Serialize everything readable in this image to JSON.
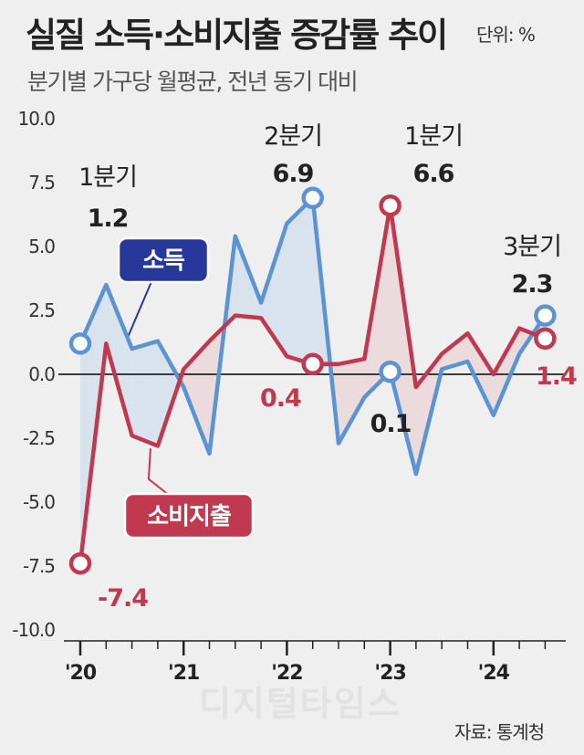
{
  "header": {
    "title": "실질 소득·소비지출 증감률 추이",
    "unit": "단위: %",
    "subtitle": "분기별 가구당 월평균, 전년 동기 대비"
  },
  "footer": {
    "source": "자료: 통계청",
    "watermark": "디지털타임스"
  },
  "colors": {
    "income": "#5b93d3",
    "income_fill": "#d9e3ee",
    "spending": "#c0394f",
    "spending_fill": "#ecdbdd",
    "income_badge": "#27389a",
    "spending_badge": "#c0394f",
    "background": "#efefef"
  },
  "chart_data": {
    "type": "line",
    "title": "실질 소득·소비지출 증감률 추이",
    "subtitle": "분기별 가구당 월평균, 전년 동기 대비",
    "unit": "%",
    "xlabel": "",
    "ylabel": "",
    "ylim": [
      -10,
      10
    ],
    "yticks": [
      10.0,
      7.5,
      5.0,
      2.5,
      0.0,
      -2.5,
      -5.0,
      -7.5,
      -10.0
    ],
    "ytick_labels": [
      "10.0",
      "7.5",
      "5.0",
      "2.5",
      "0.0",
      "-2.5",
      "-5.0",
      "-7.5",
      "-10.0"
    ],
    "year_labels": [
      "'20",
      "'21",
      "'22",
      "'23",
      "'24"
    ],
    "x": [
      "'20 1Q",
      "'20 2Q",
      "'20 3Q",
      "'20 4Q",
      "'21 1Q",
      "'21 2Q",
      "'21 3Q",
      "'21 4Q",
      "'22 1Q",
      "'22 2Q",
      "'22 3Q",
      "'22 4Q",
      "'23 1Q",
      "'23 2Q",
      "'23 3Q",
      "'23 4Q",
      "'24 1Q",
      "'24 2Q",
      "'24 3Q"
    ],
    "grid": false,
    "series": [
      {
        "name": "소득",
        "values": [
          1.2,
          3.5,
          1.0,
          1.3,
          -0.5,
          -3.1,
          5.4,
          2.8,
          5.9,
          6.9,
          -2.7,
          -0.9,
          0.1,
          -3.9,
          0.2,
          0.5,
          -1.6,
          0.8,
          2.3
        ]
      },
      {
        "name": "소비지출",
        "values": [
          -7.4,
          1.2,
          -2.4,
          -2.8,
          0.2,
          1.3,
          2.3,
          2.2,
          0.7,
          0.4,
          0.4,
          0.6,
          6.6,
          -0.5,
          0.8,
          1.6,
          0.0,
          1.8,
          1.4
        ]
      }
    ],
    "annotations": [
      {
        "series": "소득",
        "index": 0,
        "label": "1분기",
        "value": "1.2"
      },
      {
        "series": "소득",
        "index": 9,
        "label": "2분기",
        "value": "6.9"
      },
      {
        "series": "소비지출",
        "index": 12,
        "label": "1분기",
        "value": "6.6"
      },
      {
        "series": "소득",
        "index": 18,
        "label": "3분기",
        "value": "2.3"
      },
      {
        "series": "소비지출",
        "index": 0,
        "label": "",
        "value": "-7.4"
      },
      {
        "series": "소비지출",
        "index": 9,
        "label": "",
        "value": "0.4"
      },
      {
        "series": "소득",
        "index": 12,
        "label": "",
        "value": "0.1"
      },
      {
        "series": "소비지출",
        "index": 18,
        "label": "",
        "value": "1.4"
      }
    ]
  }
}
